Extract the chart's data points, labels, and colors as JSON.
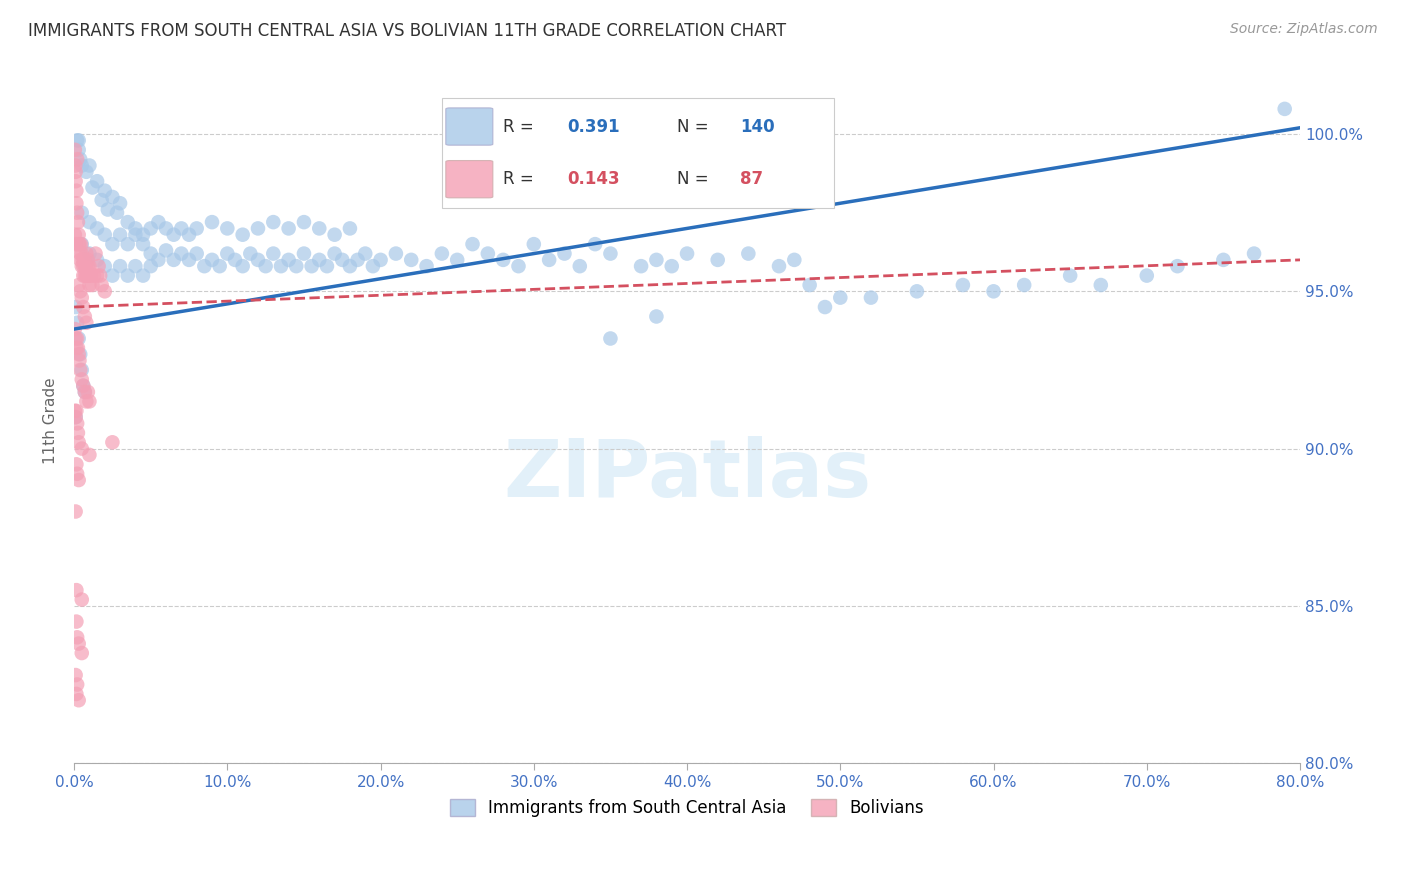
{
  "title": "IMMIGRANTS FROM SOUTH CENTRAL ASIA VS BOLIVIAN 11TH GRADE CORRELATION CHART",
  "source": "Source: ZipAtlas.com",
  "ylabel_label": "11th Grade",
  "xmin": 0.0,
  "xmax": 80.0,
  "ymin": 80.0,
  "ymax": 101.8,
  "blue_R": 0.391,
  "blue_N": 140,
  "pink_R": 0.143,
  "pink_N": 87,
  "blue_color": "#a8c8e8",
  "pink_color": "#f4a0b5",
  "blue_line_color": "#2a6ebb",
  "pink_line_color": "#d45060",
  "watermark": "ZIPatlas",
  "legend_label_blue": "Immigrants from South Central Asia",
  "legend_label_pink": "Bolivians",
  "blue_scatter": [
    [
      0.2,
      99.8
    ],
    [
      0.3,
      99.5
    ],
    [
      0.4,
      99.2
    ],
    [
      0.5,
      99.0
    ],
    [
      0.3,
      99.8
    ],
    [
      1.0,
      99.0
    ],
    [
      1.5,
      98.5
    ],
    [
      2.0,
      98.2
    ],
    [
      2.5,
      98.0
    ],
    [
      3.0,
      97.8
    ],
    [
      0.8,
      98.8
    ],
    [
      1.2,
      98.3
    ],
    [
      1.8,
      97.9
    ],
    [
      2.2,
      97.6
    ],
    [
      2.8,
      97.5
    ],
    [
      0.5,
      97.5
    ],
    [
      1.0,
      97.2
    ],
    [
      1.5,
      97.0
    ],
    [
      2.0,
      96.8
    ],
    [
      2.5,
      96.5
    ],
    [
      3.0,
      96.8
    ],
    [
      3.5,
      96.5
    ],
    [
      4.0,
      96.8
    ],
    [
      4.5,
      96.5
    ],
    [
      5.0,
      96.2
    ],
    [
      5.5,
      96.0
    ],
    [
      6.0,
      96.3
    ],
    [
      6.5,
      96.0
    ],
    [
      7.0,
      96.2
    ],
    [
      7.5,
      96.0
    ],
    [
      8.0,
      96.2
    ],
    [
      8.5,
      95.8
    ],
    [
      9.0,
      96.0
    ],
    [
      9.5,
      95.8
    ],
    [
      10.0,
      96.2
    ],
    [
      10.5,
      96.0
    ],
    [
      11.0,
      95.8
    ],
    [
      11.5,
      96.2
    ],
    [
      12.0,
      96.0
    ],
    [
      12.5,
      95.8
    ],
    [
      13.0,
      96.2
    ],
    [
      13.5,
      95.8
    ],
    [
      14.0,
      96.0
    ],
    [
      14.5,
      95.8
    ],
    [
      15.0,
      96.2
    ],
    [
      15.5,
      95.8
    ],
    [
      16.0,
      96.0
    ],
    [
      16.5,
      95.8
    ],
    [
      17.0,
      96.2
    ],
    [
      17.5,
      96.0
    ],
    [
      18.0,
      95.8
    ],
    [
      18.5,
      96.0
    ],
    [
      19.0,
      96.2
    ],
    [
      19.5,
      95.8
    ],
    [
      20.0,
      96.0
    ],
    [
      21.0,
      96.2
    ],
    [
      22.0,
      96.0
    ],
    [
      23.0,
      95.8
    ],
    [
      24.0,
      96.2
    ],
    [
      25.0,
      96.0
    ],
    [
      26.0,
      96.5
    ],
    [
      27.0,
      96.2
    ],
    [
      28.0,
      96.0
    ],
    [
      29.0,
      95.8
    ],
    [
      30.0,
      96.5
    ],
    [
      31.0,
      96.0
    ],
    [
      32.0,
      96.2
    ],
    [
      33.0,
      95.8
    ],
    [
      34.0,
      96.5
    ],
    [
      35.0,
      96.2
    ],
    [
      3.5,
      97.2
    ],
    [
      4.0,
      97.0
    ],
    [
      4.5,
      96.8
    ],
    [
      5.0,
      97.0
    ],
    [
      5.5,
      97.2
    ],
    [
      6.0,
      97.0
    ],
    [
      6.5,
      96.8
    ],
    [
      7.0,
      97.0
    ],
    [
      7.5,
      96.8
    ],
    [
      8.0,
      97.0
    ],
    [
      9.0,
      97.2
    ],
    [
      10.0,
      97.0
    ],
    [
      11.0,
      96.8
    ],
    [
      12.0,
      97.0
    ],
    [
      13.0,
      97.2
    ],
    [
      14.0,
      97.0
    ],
    [
      15.0,
      97.2
    ],
    [
      16.0,
      97.0
    ],
    [
      17.0,
      96.8
    ],
    [
      18.0,
      97.0
    ],
    [
      0.5,
      96.5
    ],
    [
      1.0,
      96.2
    ],
    [
      1.5,
      96.0
    ],
    [
      2.0,
      95.8
    ],
    [
      2.5,
      95.5
    ],
    [
      3.0,
      95.8
    ],
    [
      3.5,
      95.5
    ],
    [
      4.0,
      95.8
    ],
    [
      4.5,
      95.5
    ],
    [
      5.0,
      95.8
    ],
    [
      37.0,
      95.8
    ],
    [
      38.0,
      96.0
    ],
    [
      39.0,
      95.8
    ],
    [
      40.0,
      96.2
    ],
    [
      42.0,
      96.0
    ],
    [
      44.0,
      96.2
    ],
    [
      46.0,
      95.8
    ],
    [
      47.0,
      96.0
    ],
    [
      48.0,
      95.2
    ],
    [
      50.0,
      94.8
    ],
    [
      35.0,
      93.5
    ],
    [
      38.0,
      94.2
    ],
    [
      49.0,
      94.5
    ],
    [
      52.0,
      94.8
    ],
    [
      55.0,
      95.0
    ],
    [
      58.0,
      95.2
    ],
    [
      60.0,
      95.0
    ],
    [
      62.0,
      95.2
    ],
    [
      65.0,
      95.5
    ],
    [
      67.0,
      95.2
    ],
    [
      70.0,
      95.5
    ],
    [
      72.0,
      95.8
    ],
    [
      75.0,
      96.0
    ],
    [
      77.0,
      96.2
    ],
    [
      79.0,
      100.8
    ],
    [
      0.1,
      94.5
    ],
    [
      0.2,
      94.0
    ],
    [
      0.3,
      93.5
    ],
    [
      0.4,
      93.0
    ],
    [
      0.5,
      92.5
    ],
    [
      0.6,
      92.0
    ],
    [
      0.7,
      91.8
    ],
    [
      0.1,
      91.0
    ]
  ],
  "pink_scatter": [
    [
      0.05,
      99.5
    ],
    [
      0.08,
      99.0
    ],
    [
      0.1,
      98.8
    ],
    [
      0.1,
      98.5
    ],
    [
      0.15,
      98.2
    ],
    [
      0.15,
      97.8
    ],
    [
      0.2,
      99.2
    ],
    [
      0.2,
      97.5
    ],
    [
      0.25,
      97.2
    ],
    [
      0.3,
      96.8
    ],
    [
      0.3,
      96.5
    ],
    [
      0.35,
      96.5
    ],
    [
      0.4,
      96.2
    ],
    [
      0.4,
      96.0
    ],
    [
      0.45,
      96.5
    ],
    [
      0.5,
      96.2
    ],
    [
      0.5,
      95.8
    ],
    [
      0.55,
      96.0
    ],
    [
      0.6,
      95.8
    ],
    [
      0.6,
      95.5
    ],
    [
      0.65,
      96.0
    ],
    [
      0.7,
      95.8
    ],
    [
      0.7,
      95.5
    ],
    [
      0.75,
      95.8
    ],
    [
      0.8,
      96.2
    ],
    [
      0.8,
      95.5
    ],
    [
      0.85,
      95.5
    ],
    [
      0.9,
      96.0
    ],
    [
      0.9,
      95.8
    ],
    [
      0.95,
      95.5
    ],
    [
      1.0,
      95.8
    ],
    [
      1.0,
      95.2
    ],
    [
      1.1,
      95.5
    ],
    [
      1.2,
      95.2
    ],
    [
      1.3,
      95.5
    ],
    [
      1.4,
      96.2
    ],
    [
      1.5,
      95.5
    ],
    [
      1.6,
      95.8
    ],
    [
      1.7,
      95.5
    ],
    [
      1.8,
      95.2
    ],
    [
      2.0,
      95.0
    ],
    [
      0.3,
      95.2
    ],
    [
      0.4,
      95.0
    ],
    [
      0.5,
      94.8
    ],
    [
      0.6,
      94.5
    ],
    [
      0.7,
      94.2
    ],
    [
      0.8,
      94.0
    ],
    [
      0.05,
      93.8
    ],
    [
      0.1,
      93.5
    ],
    [
      0.15,
      93.2
    ],
    [
      0.2,
      93.5
    ],
    [
      0.25,
      93.2
    ],
    [
      0.3,
      93.0
    ],
    [
      0.35,
      92.8
    ],
    [
      0.4,
      92.5
    ],
    [
      0.5,
      92.2
    ],
    [
      0.6,
      92.0
    ],
    [
      0.7,
      91.8
    ],
    [
      0.8,
      91.5
    ],
    [
      0.9,
      91.8
    ],
    [
      1.0,
      91.5
    ],
    [
      0.05,
      91.2
    ],
    [
      0.1,
      91.0
    ],
    [
      0.15,
      91.2
    ],
    [
      0.2,
      90.8
    ],
    [
      0.25,
      90.5
    ],
    [
      0.3,
      90.2
    ],
    [
      0.5,
      90.0
    ],
    [
      1.0,
      89.8
    ],
    [
      0.15,
      89.5
    ],
    [
      0.2,
      89.2
    ],
    [
      0.3,
      89.0
    ],
    [
      0.1,
      88.0
    ],
    [
      0.5,
      85.2
    ],
    [
      0.15,
      84.5
    ],
    [
      0.2,
      84.0
    ],
    [
      0.3,
      83.8
    ],
    [
      0.5,
      83.5
    ],
    [
      0.1,
      82.8
    ],
    [
      0.15,
      82.2
    ],
    [
      0.2,
      82.5
    ],
    [
      0.3,
      82.0
    ],
    [
      0.15,
      85.5
    ],
    [
      2.5,
      90.2
    ],
    [
      0.05,
      96.8
    ],
    [
      0.07,
      96.5
    ]
  ],
  "blue_trend_x": [
    0.0,
    80.0
  ],
  "blue_trend_y": [
    93.8,
    100.2
  ],
  "pink_trend_x": [
    0.0,
    80.0
  ],
  "pink_trend_y": [
    94.5,
    96.0
  ]
}
